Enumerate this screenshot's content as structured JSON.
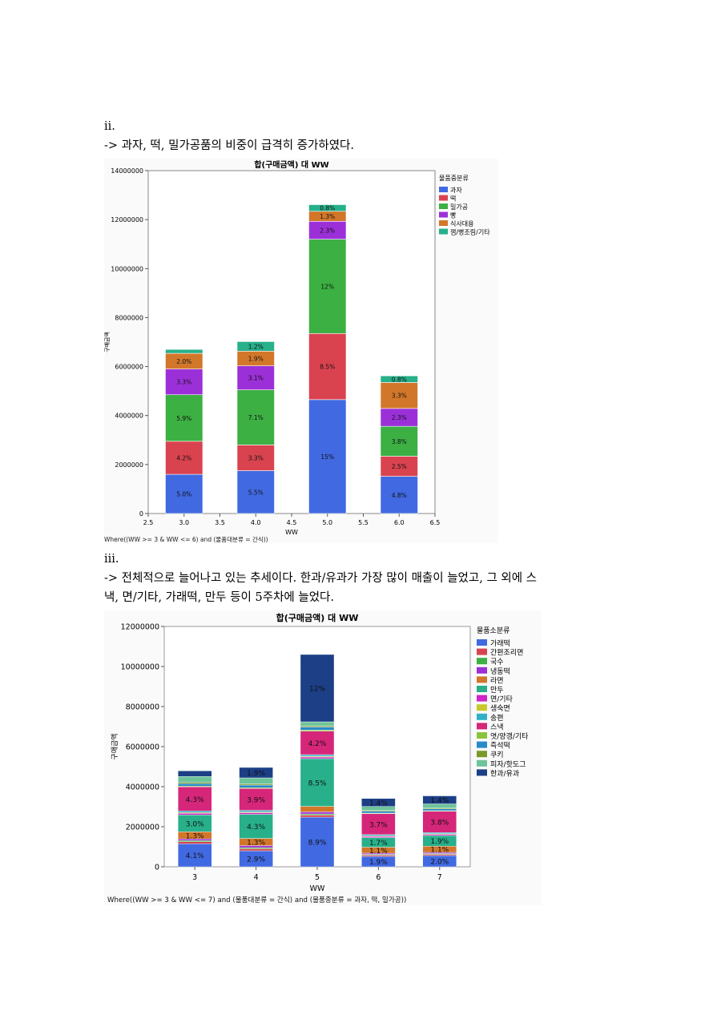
{
  "section1": {
    "number": "ii.",
    "text": "-> 과자, 떡, 밀가공품의 비중이 급격히 증가하였다."
  },
  "section2": {
    "number": "iii.",
    "line1": "-> 전체적으로 늘어나고 있는 추세이다. 한과/유과가 가장 많이 매출이 늘었고, 그 외에 스",
    "line2": "낵, 면/기타, 가래떡, 만두 등이 5주차에 늘었다."
  },
  "chart_data": [
    {
      "type": "bar",
      "stacked": true,
      "title": "합(구매금액) 대 WW",
      "xlabel": "WW",
      "ylabel": "구매금액",
      "x_ticks": [
        "2.5",
        "3.0",
        "3.5",
        "4.0",
        "4.5",
        "5.0",
        "5.5",
        "6.0",
        "6.5"
      ],
      "xlim": [
        2.5,
        6.5
      ],
      "y_ticks": [
        "0",
        "2000000",
        "4000000",
        "6000000",
        "8000000",
        "10000000",
        "12000000",
        "14000000"
      ],
      "ylim": [
        0,
        14000000
      ],
      "legend_title": "물품중분류",
      "legend_position": "right",
      "footer": "Where((WW >= 3 & WW <= 6) and (물품대분류 = 간식))",
      "x": [
        3.0,
        4.0,
        5.0,
        6.0
      ],
      "series": [
        {
          "name": "과자",
          "color": "#4169e1",
          "values": [
            1600000,
            1750000,
            4650000,
            1520000
          ],
          "labels": [
            "5.0%",
            "5.5%",
            "15%",
            "4.8%"
          ]
        },
        {
          "name": "떡",
          "color": "#d9434f",
          "values": [
            1350000,
            1050000,
            2700000,
            820000
          ],
          "labels": [
            "4.2%",
            "3.3%",
            "8.5%",
            "2.5%"
          ]
        },
        {
          "name": "밀가공",
          "color": "#3cb043",
          "values": [
            1900000,
            2250000,
            3850000,
            1220000
          ],
          "labels": [
            "5.9%",
            "7.1%",
            "12%",
            "3.8%"
          ]
        },
        {
          "name": "빵",
          "color": "#9b30d9",
          "values": [
            1050000,
            980000,
            730000,
            730000
          ],
          "labels": [
            "3.3%",
            "3.1%",
            "2.3%",
            "2.3%"
          ]
        },
        {
          "name": "식사대용",
          "color": "#d2772a",
          "values": [
            640000,
            600000,
            410000,
            1060000
          ],
          "labels": [
            "2.0%",
            "1.9%",
            "1.3%",
            "3.3%"
          ]
        },
        {
          "name": "잼/병조림/기타",
          "color": "#27b08a",
          "values": [
            160000,
            390000,
            270000,
            270000
          ],
          "labels": [
            "",
            "1.2%",
            "0.8%",
            "0.8%"
          ]
        }
      ]
    },
    {
      "type": "bar",
      "stacked": true,
      "title": "합(구매금액) 대 WW",
      "xlabel": "WW",
      "ylabel": "구매금액",
      "categories": [
        "3",
        "4",
        "5",
        "6",
        "7"
      ],
      "y_ticks": [
        "0",
        "2000000",
        "4000000",
        "6000000",
        "8000000",
        "10000000",
        "12000000"
      ],
      "ylim": [
        0,
        12000000
      ],
      "legend_title": "물품소분류",
      "legend_position": "right",
      "footer": "Where((WW >= 3 & WW <= 7) and (물품대분류 = 간식) and (물품중분류 = 과자, 떡, 밀가공))",
      "series": [
        {
          "name": "가래떡",
          "color": "#4169e1",
          "values": [
            1150000,
            800000,
            2480000,
            520000,
            560000
          ],
          "labels": [
            "4.1%",
            "2.9%",
            "8.9%",
            "1.9%",
            "2.0%"
          ]
        },
        {
          "name": "간편조리면",
          "color": "#d9434f",
          "values": [
            100000,
            100000,
            100000,
            60000,
            60000
          ],
          "labels": [
            "",
            "",
            "",
            "",
            ""
          ]
        },
        {
          "name": "국수",
          "color": "#3cb043",
          "values": [
            60000,
            60000,
            60000,
            40000,
            40000
          ],
          "labels": [
            "",
            "",
            "",
            "",
            ""
          ]
        },
        {
          "name": "냉동떡",
          "color": "#9b30d9",
          "values": [
            80000,
            100000,
            100000,
            60000,
            60000
          ],
          "labels": [
            "",
            "",
            "",
            "",
            ""
          ]
        },
        {
          "name": "라면",
          "color": "#d2772a",
          "values": [
            360000,
            360000,
            280000,
            300000,
            310000
          ],
          "labels": [
            "1.3%",
            "1.3%",
            "",
            "1.1%",
            "1.1%"
          ]
        },
        {
          "name": "만두",
          "color": "#27b08a",
          "values": [
            840000,
            1200000,
            2380000,
            480000,
            530000
          ],
          "labels": [
            "3.0%",
            "4.3%",
            "8.5%",
            "1.7%",
            "1.9%"
          ]
        },
        {
          "name": "면/기타",
          "color": "#d024c8",
          "values": [
            80000,
            80000,
            80000,
            60000,
            60000
          ],
          "labels": [
            "",
            "",
            "",
            "",
            ""
          ]
        },
        {
          "name": "생숙면",
          "color": "#c8c82a",
          "values": [
            40000,
            40000,
            40000,
            30000,
            30000
          ],
          "labels": [
            "",
            "",
            "",
            "",
            ""
          ]
        },
        {
          "name": "송편",
          "color": "#2fb0c8",
          "values": [
            80000,
            80000,
            80000,
            60000,
            60000
          ],
          "labels": [
            "",
            "",
            "",
            "",
            ""
          ]
        },
        {
          "name": "스낵",
          "color": "#d6267a",
          "values": [
            1200000,
            1090000,
            1170000,
            1040000,
            1060000
          ],
          "labels": [
            "4.3%",
            "3.9%",
            "4.2%",
            "3.7%",
            "3.8%"
          ]
        },
        {
          "name": "엿/양갱/기타",
          "color": "#8bc43c",
          "values": [
            40000,
            40000,
            60000,
            30000,
            30000
          ],
          "labels": [
            "",
            "",
            "",
            "",
            ""
          ]
        },
        {
          "name": "즉석떡",
          "color": "#2a8ac8",
          "values": [
            120000,
            130000,
            150000,
            90000,
            90000
          ],
          "labels": [
            "",
            "",
            "",
            "",
            ""
          ]
        },
        {
          "name": "쿠키",
          "color": "#7a9a2a",
          "values": [
            60000,
            60000,
            60000,
            40000,
            40000
          ],
          "labels": [
            "",
            "",
            "",
            "",
            ""
          ]
        },
        {
          "name": "피자/핫도그",
          "color": "#6ec49a",
          "values": [
            300000,
            300000,
            200000,
            200000,
            210000
          ],
          "labels": [
            "",
            "",
            "",
            "",
            ""
          ]
        },
        {
          "name": "한과/유과",
          "color": "#1c3f86",
          "values": [
            280000,
            520000,
            3360000,
            400000,
            400000
          ],
          "labels": [
            "",
            "1.9%",
            "12%",
            "1.4%",
            "1.4%"
          ]
        }
      ]
    }
  ]
}
